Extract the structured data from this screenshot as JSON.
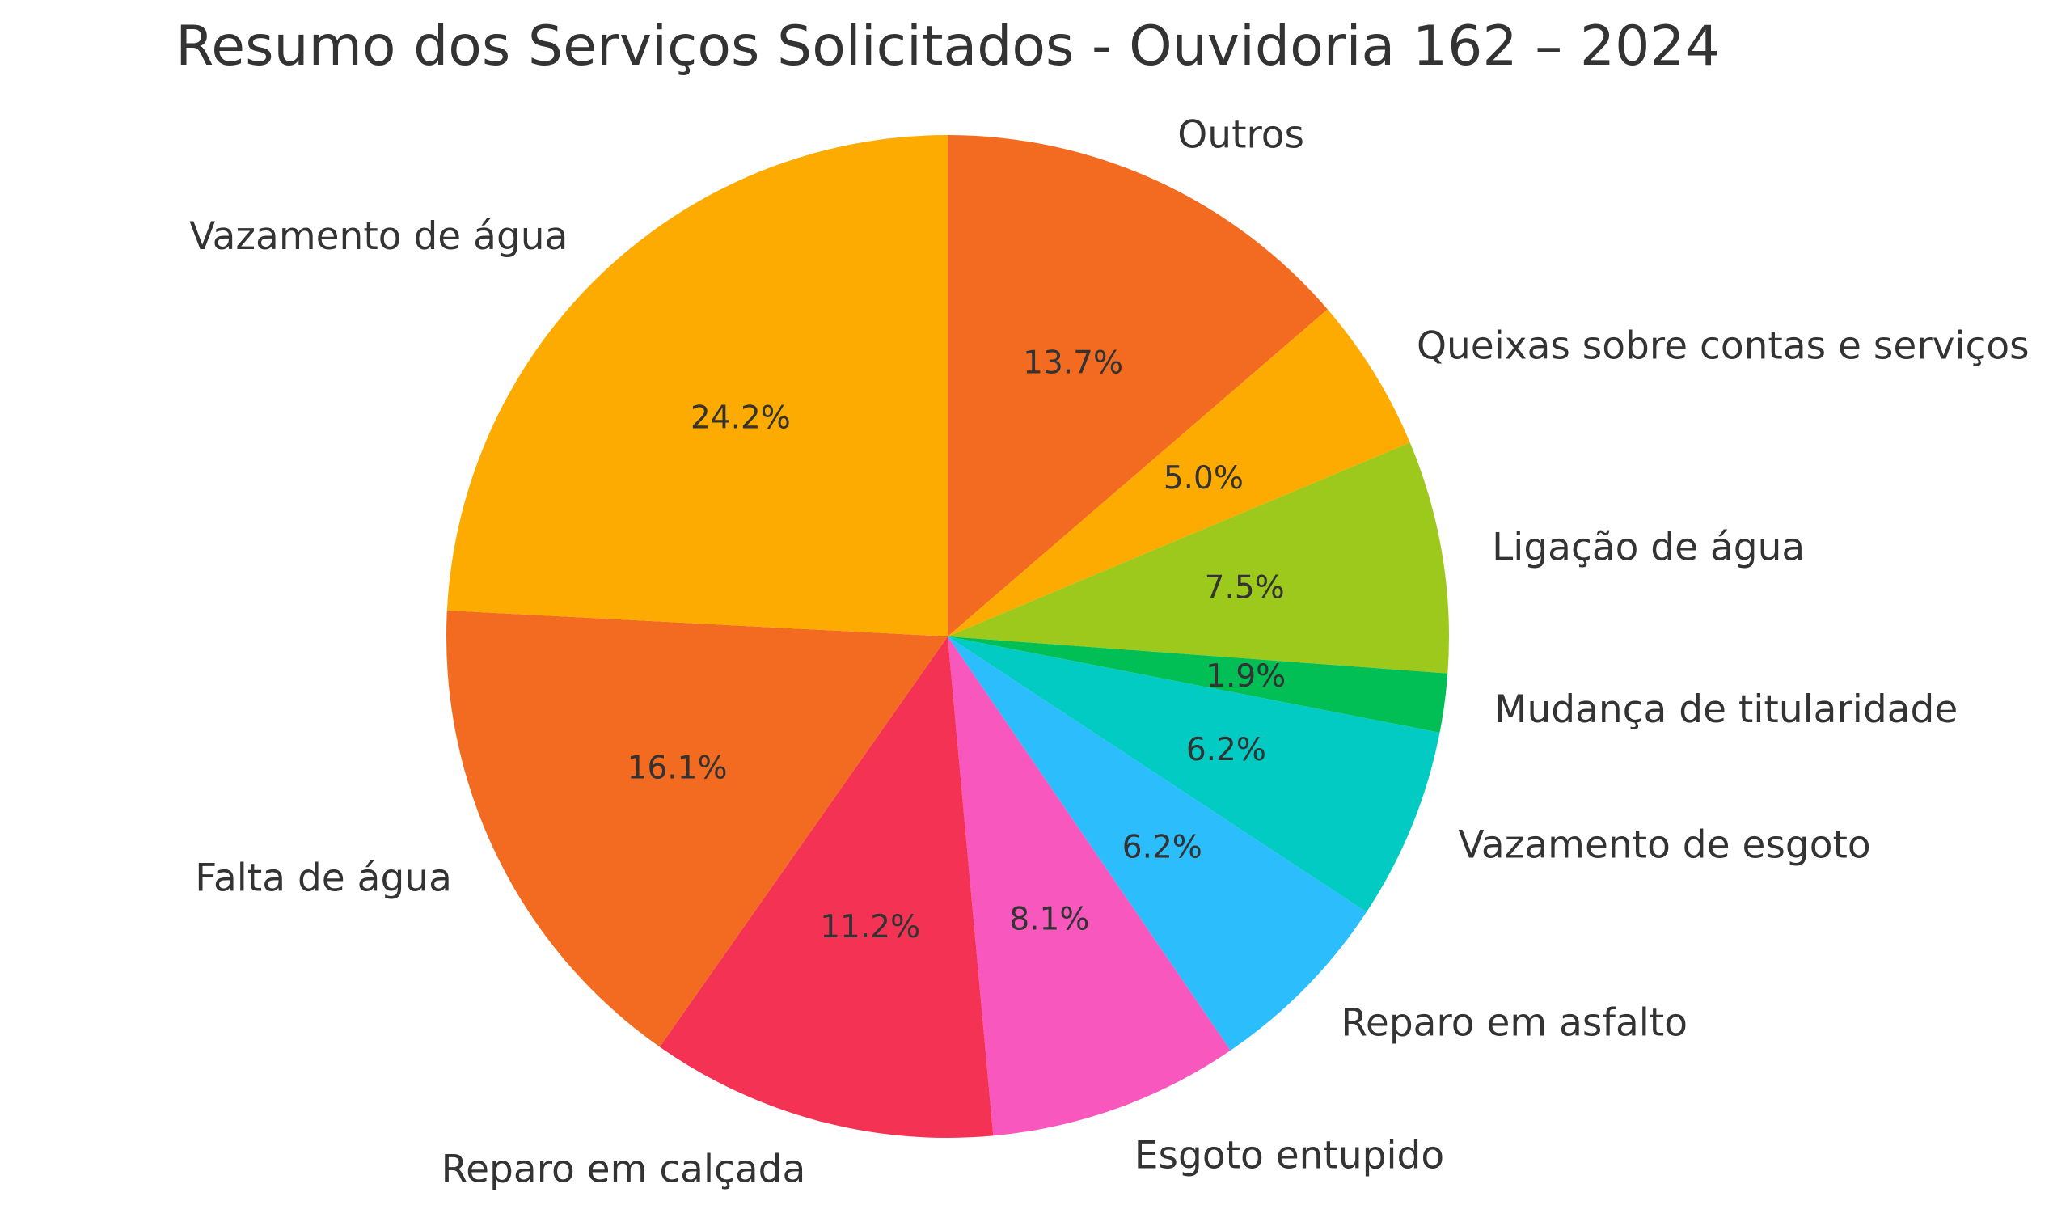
{
  "chart_data": {
    "type": "pie",
    "title": "Resumo dos Serviços Solicitados - Ouvidoria 162 – 2024",
    "start": "top",
    "direction": "clockwise",
    "slices": [
      {
        "label": "Outros",
        "value": 13.7,
        "pct_label": "13.7%",
        "color": "#F26B21"
      },
      {
        "label": "Queixas sobre contas e serviços",
        "value": 5.0,
        "pct_label": "5.0%",
        "color": "#FDAB01"
      },
      {
        "label": "Ligação de água",
        "value": 7.5,
        "pct_label": "7.5%",
        "color": "#9DC91C"
      },
      {
        "label": "Mudança de titularidade",
        "value": 1.9,
        "pct_label": "1.9%",
        "color": "#01BE55"
      },
      {
        "label": "Vazamento de esgoto",
        "value": 6.2,
        "pct_label": "6.2%",
        "color": "#01CBC2"
      },
      {
        "label": "Reparo em asfalto",
        "value": 6.2,
        "pct_label": "6.2%",
        "color": "#2BBDFC"
      },
      {
        "label": "Esgoto entupido",
        "value": 8.1,
        "pct_label": "8.1%",
        "color": "#F858BE"
      },
      {
        "label": "Reparo em calçada",
        "value": 11.2,
        "pct_label": "11.2%",
        "color": "#F43253"
      },
      {
        "label": "Falta de água",
        "value": 16.1,
        "pct_label": "16.1%",
        "color": "#F26B21"
      },
      {
        "label": "Vazamento de água",
        "value": 24.2,
        "pct_label": "24.2%",
        "color": "#FDAB01"
      }
    ]
  }
}
